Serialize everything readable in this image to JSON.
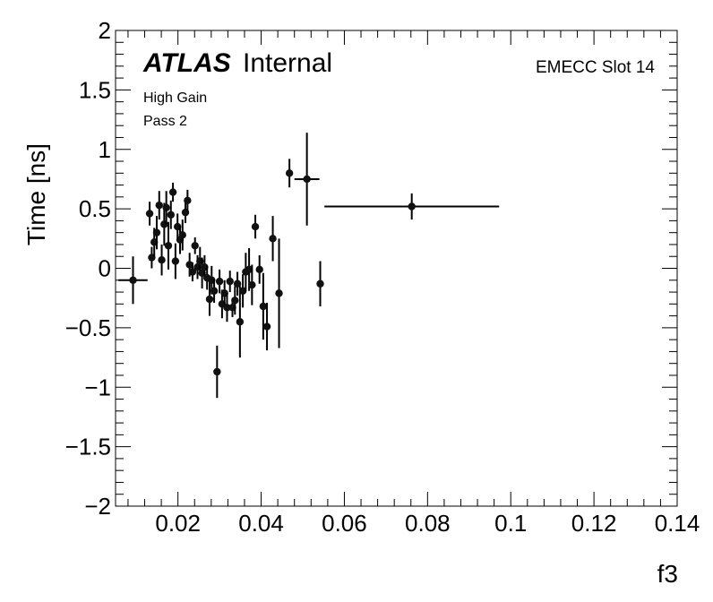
{
  "labels": {
    "atlas": "ATLAS",
    "internal": "Internal",
    "gain": "High Gain",
    "pass": "Pass 2",
    "region": "EMECC Slot 14"
  },
  "chart_data": {
    "type": "scatter",
    "xlabel": "f3",
    "ylabel": "Time [ns]",
    "xlim": [
      0.005,
      0.14
    ],
    "ylim": [
      -2,
      2
    ],
    "xticks": [
      "0.02",
      "0.04",
      "0.06",
      "0.08",
      "0.1",
      "0.12",
      "0.14"
    ],
    "yticks": [
      "2",
      "1.5",
      "1",
      "0.5",
      "0",
      "−0.5",
      "−1",
      "−1.5",
      "−2"
    ],
    "points": [
      {
        "x": 0.0092,
        "y": -0.1,
        "xerr": 0.0035,
        "yerr": 0.2
      },
      {
        "x": 0.0132,
        "y": 0.46,
        "xerr": 0.0003,
        "yerr": 0.1
      },
      {
        "x": 0.0137,
        "y": 0.09,
        "xerr": 0.0003,
        "yerr": 0.09
      },
      {
        "x": 0.0143,
        "y": 0.22,
        "xerr": 0.0003,
        "yerr": 0.12
      },
      {
        "x": 0.0149,
        "y": 0.3,
        "xerr": 0.0003,
        "yerr": 0.14
      },
      {
        "x": 0.0155,
        "y": 0.53,
        "xerr": 0.0003,
        "yerr": 0.12
      },
      {
        "x": 0.0161,
        "y": 0.07,
        "xerr": 0.0003,
        "yerr": 0.13
      },
      {
        "x": 0.0167,
        "y": 0.37,
        "xerr": 0.0003,
        "yerr": 0.18
      },
      {
        "x": 0.0172,
        "y": 0.51,
        "xerr": 0.0003,
        "yerr": 0.14
      },
      {
        "x": 0.0177,
        "y": 0.19,
        "xerr": 0.0003,
        "yerr": 0.2
      },
      {
        "x": 0.0183,
        "y": 0.45,
        "xerr": 0.0003,
        "yerr": 0.12
      },
      {
        "x": 0.0188,
        "y": 0.64,
        "xerr": 0.0003,
        "yerr": 0.08
      },
      {
        "x": 0.0194,
        "y": 0.06,
        "xerr": 0.0003,
        "yerr": 0.15
      },
      {
        "x": 0.0199,
        "y": 0.35,
        "xerr": 0.0003,
        "yerr": 0.11
      },
      {
        "x": 0.0205,
        "y": 0.24,
        "xerr": 0.0003,
        "yerr": 0.12
      },
      {
        "x": 0.0211,
        "y": 0.28,
        "xerr": 0.0003,
        "yerr": 0.13
      },
      {
        "x": 0.0218,
        "y": 0.47,
        "xerr": 0.0003,
        "yerr": 0.09
      },
      {
        "x": 0.0223,
        "y": 0.57,
        "xerr": 0.0003,
        "yerr": 0.09
      },
      {
        "x": 0.0228,
        "y": 0.03,
        "xerr": 0.0003,
        "yerr": 0.1
      },
      {
        "x": 0.0235,
        "y": -0.03,
        "xerr": 0.0003,
        "yerr": 0.08
      },
      {
        "x": 0.0241,
        "y": 0.19,
        "xerr": 0.0003,
        "yerr": 0.07
      },
      {
        "x": 0.0247,
        "y": 0.01,
        "xerr": 0.0003,
        "yerr": 0.1
      },
      {
        "x": 0.0253,
        "y": 0.06,
        "xerr": 0.0003,
        "yerr": 0.12
      },
      {
        "x": 0.0258,
        "y": -0.04,
        "xerr": 0.0003,
        "yerr": 0.13
      },
      {
        "x": 0.0264,
        "y": 0.01,
        "xerr": 0.0003,
        "yerr": 0.1
      },
      {
        "x": 0.027,
        "y": -0.08,
        "xerr": 0.0003,
        "yerr": 0.1
      },
      {
        "x": 0.0276,
        "y": -0.26,
        "xerr": 0.0003,
        "yerr": 0.14
      },
      {
        "x": 0.0281,
        "y": -0.1,
        "xerr": 0.0003,
        "yerr": 0.12
      },
      {
        "x": 0.0287,
        "y": -0.19,
        "xerr": 0.0003,
        "yerr": 0.1
      },
      {
        "x": 0.0294,
        "y": -0.87,
        "xerr": 0.0003,
        "yerr": 0.22
      },
      {
        "x": 0.03,
        "y": -0.11,
        "xerr": 0.0003,
        "yerr": 0.1
      },
      {
        "x": 0.0306,
        "y": -0.3,
        "xerr": 0.0003,
        "yerr": 0.12
      },
      {
        "x": 0.0312,
        "y": -0.21,
        "xerr": 0.0003,
        "yerr": 0.11
      },
      {
        "x": 0.0318,
        "y": -0.33,
        "xerr": 0.0003,
        "yerr": 0.12
      },
      {
        "x": 0.0325,
        "y": -0.11,
        "xerr": 0.0003,
        "yerr": 0.09
      },
      {
        "x": 0.0331,
        "y": -0.33,
        "xerr": 0.0003,
        "yerr": 0.08
      },
      {
        "x": 0.0337,
        "y": -0.27,
        "xerr": 0.0003,
        "yerr": 0.12
      },
      {
        "x": 0.0343,
        "y": -0.13,
        "xerr": 0.0003,
        "yerr": 0.1
      },
      {
        "x": 0.0349,
        "y": -0.45,
        "xerr": 0.0003,
        "yerr": 0.3
      },
      {
        "x": 0.0356,
        "y": -0.19,
        "xerr": 0.0003,
        "yerr": 0.14
      },
      {
        "x": 0.0363,
        "y": -0.03,
        "xerr": 0.0003,
        "yerr": 0.16
      },
      {
        "x": 0.0371,
        "y": -0.01,
        "xerr": 0.0003,
        "yerr": 0.18
      },
      {
        "x": 0.0378,
        "y": -0.14,
        "xerr": 0.0003,
        "yerr": 0.17
      },
      {
        "x": 0.0386,
        "y": 0.35,
        "xerr": 0.0003,
        "yerr": 0.1
      },
      {
        "x": 0.0396,
        "y": -0.01,
        "xerr": 0.0003,
        "yerr": 0.12
      },
      {
        "x": 0.0405,
        "y": -0.32,
        "xerr": 0.0003,
        "yerr": 0.28
      },
      {
        "x": 0.0414,
        "y": -0.49,
        "xerr": 0.0003,
        "yerr": 0.2
      },
      {
        "x": 0.0428,
        "y": 0.25,
        "xerr": 0.0003,
        "yerr": 0.19
      },
      {
        "x": 0.0443,
        "y": -0.21,
        "xerr": 0.0003,
        "yerr": 0.46
      },
      {
        "x": 0.0468,
        "y": 0.8,
        "xerr": 0.0008,
        "yerr": 0.12
      },
      {
        "x": 0.051,
        "y": 0.75,
        "xerr": 0.003,
        "yerr": 0.39
      },
      {
        "x": 0.0542,
        "y": -0.13,
        "xerr": 0.0003,
        "yerr": 0.19
      },
      {
        "x": 0.0762,
        "y": 0.52,
        "xerr": 0.021,
        "yerr": 0.11
      }
    ]
  }
}
